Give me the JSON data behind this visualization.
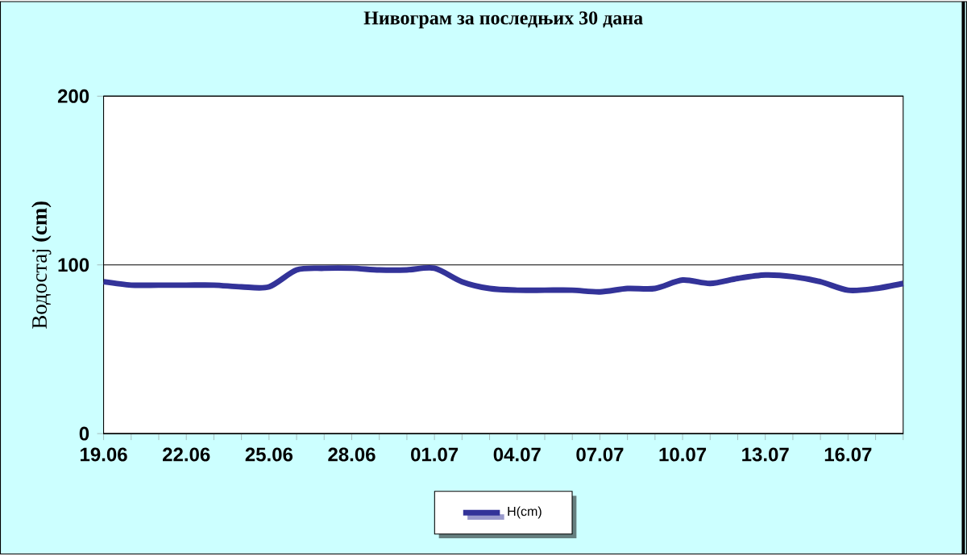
{
  "chart_data": {
    "type": "line",
    "title": "Нивограм за последњих 30 дана",
    "ylabel": "Водостај **(cm)**",
    "categories": [
      "19.06",
      null,
      null,
      "22.06",
      null,
      null,
      "25.06",
      null,
      null,
      "28.06",
      null,
      null,
      "01.07",
      null,
      null,
      "04.07",
      null,
      null,
      "07.07",
      null,
      null,
      "10.07",
      null,
      null,
      "13.07",
      null,
      null,
      "16.07",
      null,
      null
    ],
    "series": [
      {
        "name": "H(cm)",
        "color": "#333399",
        "values": [
          90,
          88,
          88,
          88,
          88,
          87,
          87,
          97,
          98,
          98,
          97,
          97,
          98,
          90,
          86,
          85,
          85,
          85,
          84,
          86,
          86,
          91,
          89,
          92,
          94,
          93,
          90,
          85,
          86,
          89
        ]
      }
    ],
    "ylim": [
      0,
      200
    ],
    "yticks": [
      0,
      100,
      200
    ],
    "grid": "y",
    "legend": "bottom",
    "marker": "none",
    "line_style": "solid"
  }
}
